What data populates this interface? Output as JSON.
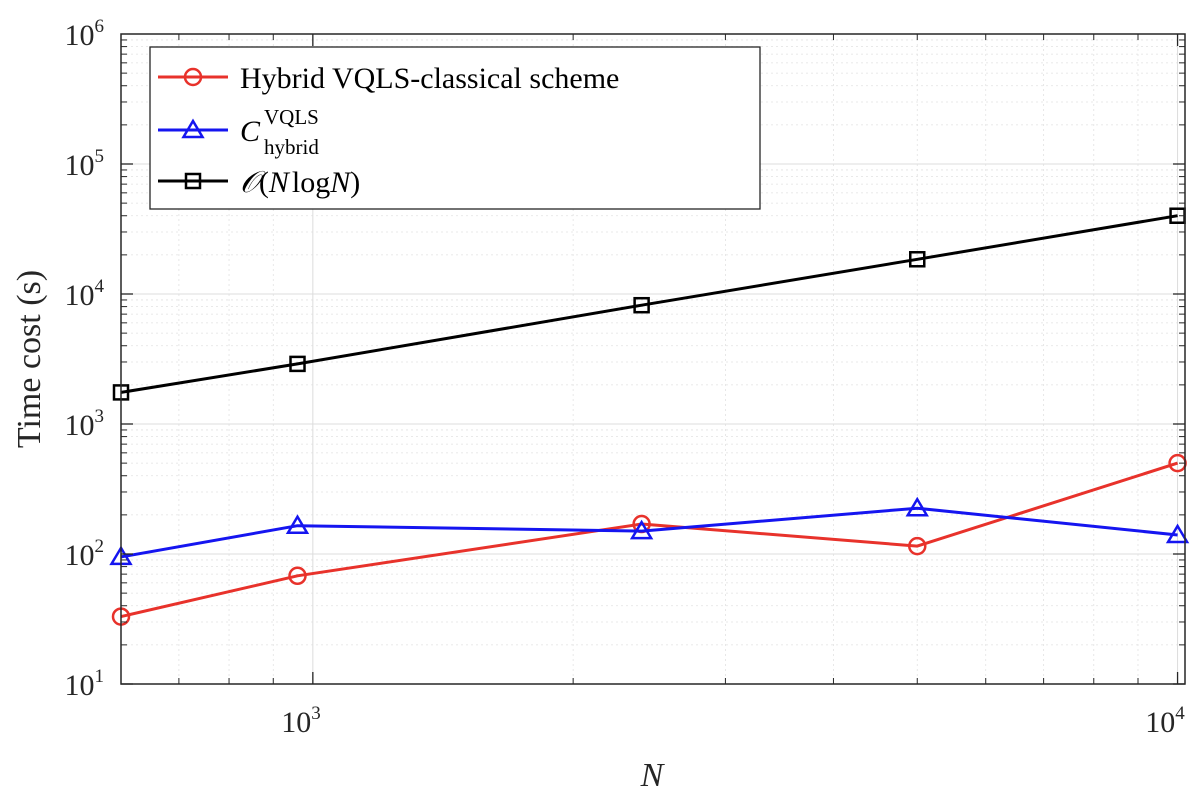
{
  "chart_data": {
    "type": "line",
    "title": "",
    "xlabel": "N",
    "ylabel": "Time cost (s)",
    "xscale": "log",
    "yscale": "log",
    "xlim": [
      600,
      10200
    ],
    "ylim": [
      10,
      1000000
    ],
    "grid": true,
    "legend_position": "top-left",
    "x_ticks": [
      {
        "base": "10",
        "exp": "3",
        "value": 1000
      },
      {
        "base": "10",
        "exp": "4",
        "value": 10000
      }
    ],
    "y_ticks": [
      {
        "base": "10",
        "exp": "1",
        "value": 10
      },
      {
        "base": "10",
        "exp": "2",
        "value": 100
      },
      {
        "base": "10",
        "exp": "3",
        "value": 1000
      },
      {
        "base": "10",
        "exp": "4",
        "value": 10000
      },
      {
        "base": "10",
        "exp": "5",
        "value": 100000
      },
      {
        "base": "10",
        "exp": "6",
        "value": 1000000
      }
    ],
    "x": [
      600,
      960,
      2400,
      5000,
      10000
    ],
    "series": [
      {
        "name": "Hybrid VQLS-classical scheme",
        "color": "#e8322b",
        "marker": "circle",
        "values": [
          33,
          68,
          170,
          115,
          500
        ]
      },
      {
        "name": "C^VQLS_hybrid",
        "color": "#1515f0",
        "marker": "triangle",
        "values": [
          95,
          165,
          150,
          225,
          140
        ]
      },
      {
        "name": "O(N logN)",
        "color": "#000000",
        "marker": "square",
        "values": [
          1750,
          2900,
          8200,
          18500,
          40000
        ]
      }
    ],
    "legend": {
      "hybrid_label": "Hybrid VQLS-classical scheme",
      "chybrid_main": "C",
      "chybrid_sup": "VQLS",
      "chybrid_sub": "hybrid",
      "onlog_O": "𝒪",
      "onlog_open": "(",
      "onlog_N1": "N",
      "onlog_log": "log",
      "onlog_N2": "N",
      "onlog_close": ")"
    }
  }
}
